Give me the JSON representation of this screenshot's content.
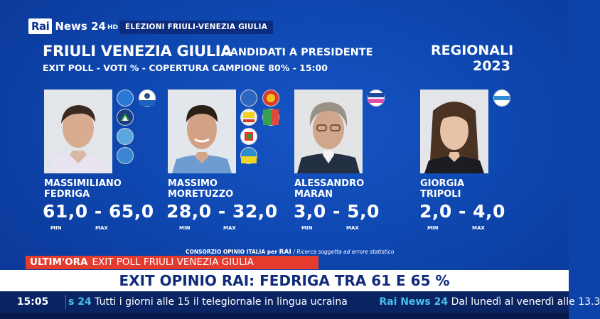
{
  "channel": {
    "rai": "Rai",
    "news": "News 24",
    "hd": "HD"
  },
  "election_tag": "ELEZIONI FRIULI-VENEZIA GIULIA",
  "header": {
    "region": "FRIULI VENEZIA GIULIA",
    "subtitle": "CANDIDATI A PRESIDENTE",
    "exit_poll": "EXIT POLL - VOTI % - COPERTURA CAMPIONE 80% - 15:00",
    "regionali": "REGIONALI",
    "year": "2023"
  },
  "candidates": [
    {
      "first": "MASSIMILIANO",
      "last": "FEDRIGA",
      "range": "61,0 - 65,0",
      "min": 61.0,
      "max": 65.0,
      "min_label": "MIN",
      "max_label": "MAX"
    },
    {
      "first": "MASSIMO",
      "last": "MORETUZZO",
      "range": "28,0 - 32,0",
      "min": 28.0,
      "max": 32.0,
      "min_label": "MIN",
      "max_label": "MAX"
    },
    {
      "first": "ALESSANDRO",
      "last": "MARAN",
      "range": "3,0 - 5,0",
      "min": 3.0,
      "max": 5.0,
      "min_label": "MIN",
      "max_label": "MAX"
    },
    {
      "first": "GIORGIA",
      "last": "TRIPOLI",
      "range": "2,0 - 4,0",
      "min": 2.0,
      "max": 4.0,
      "min_label": "MIN",
      "max_label": "MAX"
    }
  ],
  "party_logos": {
    "fedriga": [
      "forza-italia-logo",
      "lega-logo",
      "fratelli-d-italia-logo",
      "fedriga-presidente-logo",
      "fedriga-list-logo",
      "autonomia-logo"
    ],
    "moretuzzo": [
      "patto-per-autonomia-logo",
      "open-sinistra-logo",
      "m5s-logo",
      "alleanza-verdi-sinistra-logo",
      "pd-logo",
      "moretuzzo-presidente-logo"
    ],
    "maran": [
      "azione-italia-viva-logo"
    ],
    "tripoli": [
      "insieme-liberi-logo"
    ]
  },
  "footer_note": {
    "prefix": "CONSORZIO OPINIO ITALIA per",
    "rai": "RAI",
    "note": "/ Ricerca soggetta ad errore statistico"
  },
  "ultimora": {
    "label": "ULTIM'ORA",
    "text": "EXIT POLL FRIULI VENEZIA GIULIA"
  },
  "headline": "EXIT OPINIO RAI: FEDRIGA TRA 61 E 65 %",
  "ticker": {
    "time": "15:05",
    "items": [
      {
        "brand": "s 24",
        "text": "Tutti i giorni alle 15 il telegiornale in lingua ucraina"
      },
      {
        "brand": "Rai News 24",
        "text": "Dal lunedì al venerdì alle 13.3"
      }
    ]
  },
  "colors": {
    "background": "#0d43a8",
    "ultimora": "#e53b2e",
    "headline_text": "#102b7a",
    "ticker_brand": "#46c1ee"
  }
}
